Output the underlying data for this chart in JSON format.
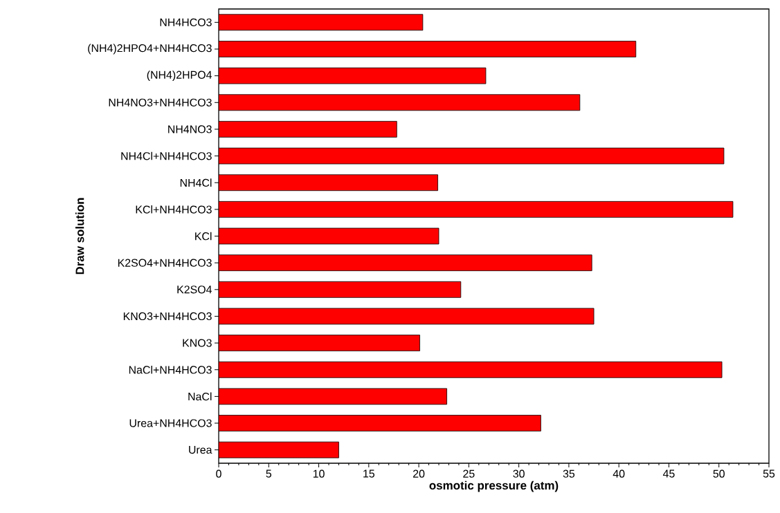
{
  "chart_data": {
    "type": "bar",
    "orientation": "horizontal",
    "xlabel": "osmotic pressure (atm)",
    "ylabel": "Draw solution",
    "categories": [
      "NH4HCO3",
      "(NH4)2HPO4+NH4HCO3",
      "(NH4)2HPO4",
      "NH4NO3+NH4HCO3",
      "NH4NO3",
      "NH4Cl+NH4HCO3",
      "NH4Cl",
      "KCl+NH4HCO3",
      "KCl",
      "K2SO4+NH4HCO3",
      "K2SO4",
      "KNO3+NH4HCO3",
      "KNO3",
      "NaCl+NH4HCO3",
      "NaCl",
      "Urea+NH4HCO3",
      "Urea"
    ],
    "values": [
      20.4,
      41.7,
      26.7,
      36.1,
      17.8,
      50.5,
      21.9,
      51.4,
      22.0,
      37.3,
      24.2,
      37.5,
      20.1,
      50.3,
      22.8,
      32.2,
      12.0
    ],
    "color": "#ff0000",
    "xlim": [
      0,
      55
    ],
    "xticks": [
      0,
      5,
      10,
      15,
      20,
      25,
      30,
      35,
      40,
      45,
      50,
      55
    ]
  }
}
